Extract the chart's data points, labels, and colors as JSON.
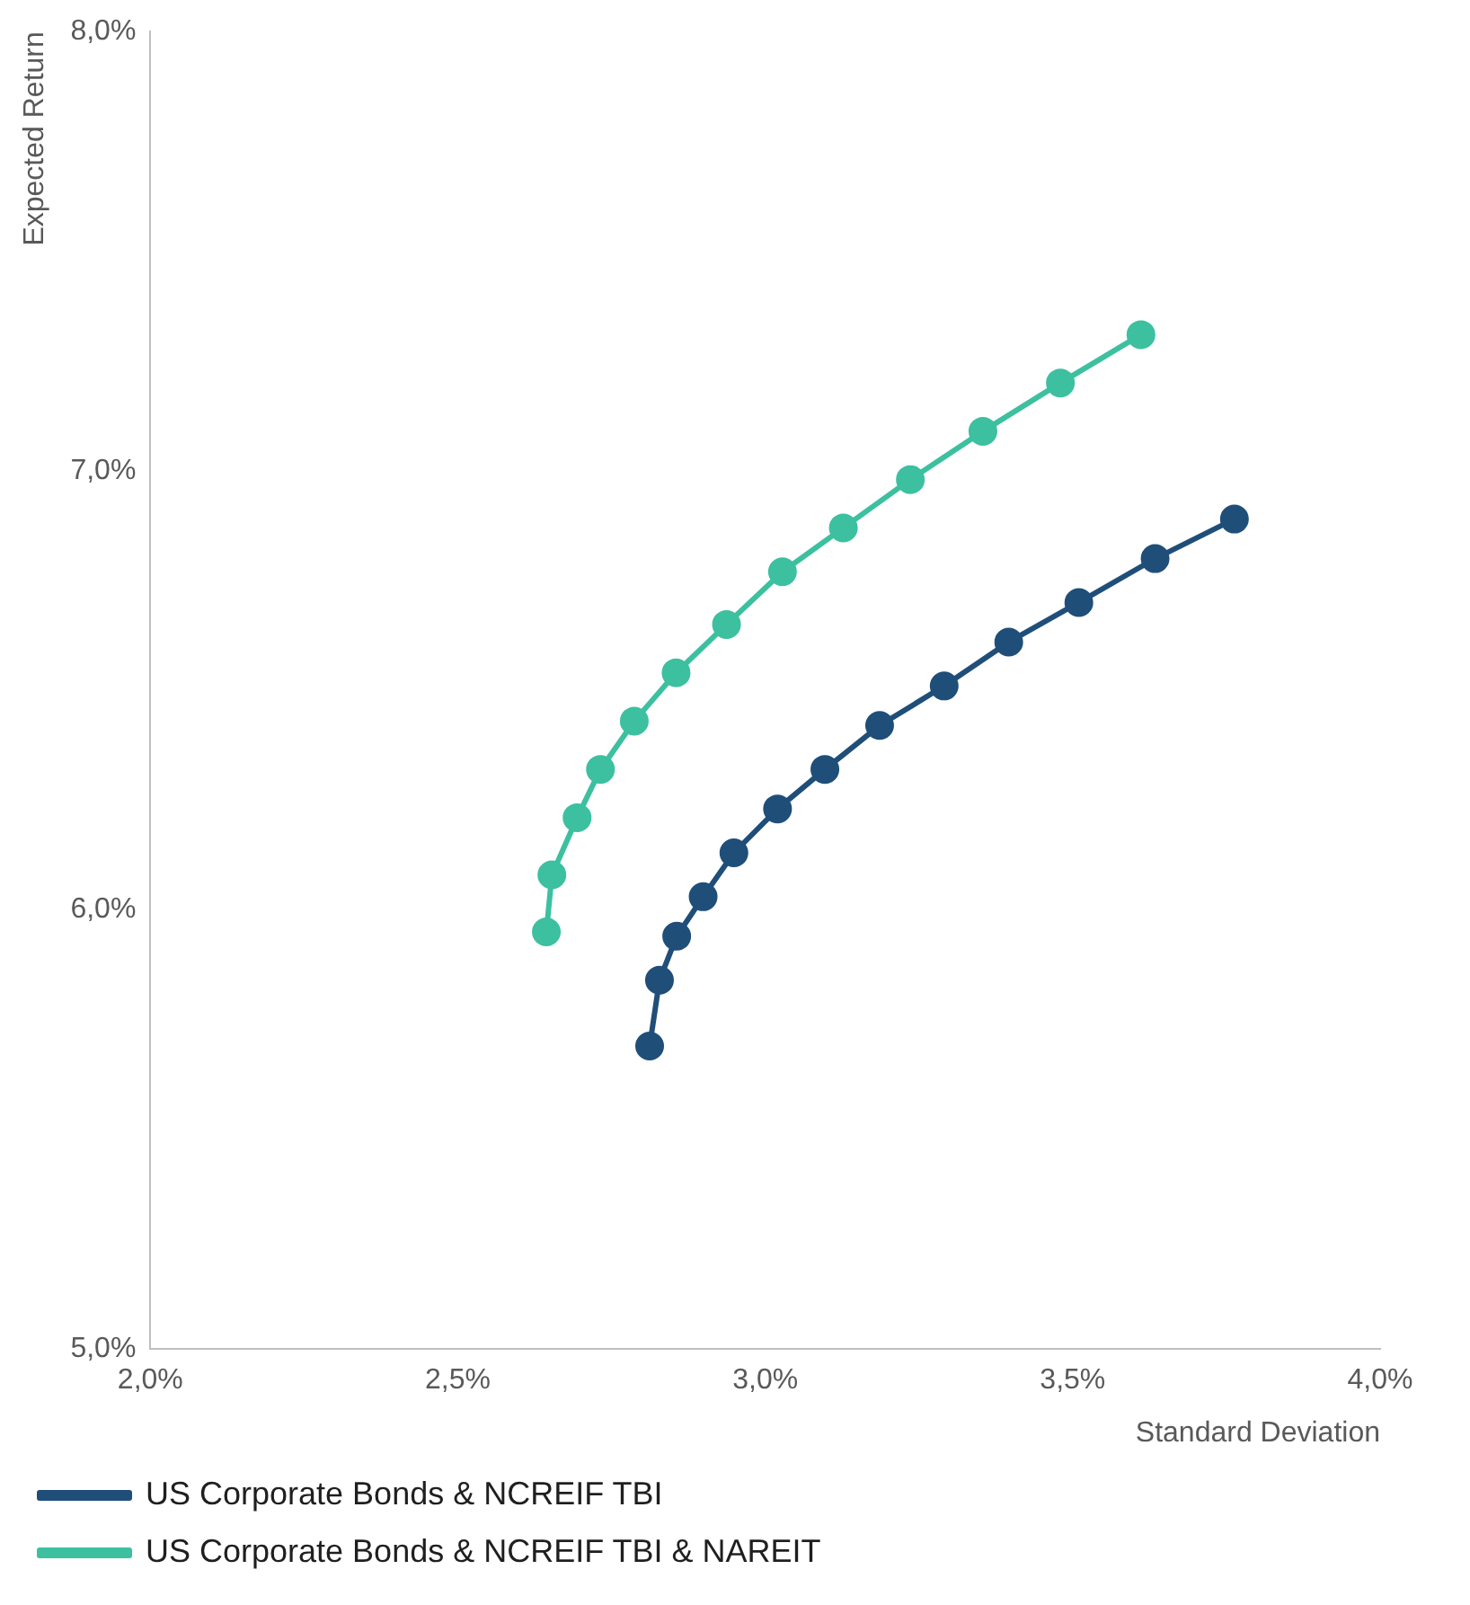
{
  "chart_data": {
    "type": "line",
    "xlabel": "Standard Deviation",
    "ylabel": "Expected Return",
    "xlim": [
      2.0,
      4.0
    ],
    "ylim": [
      5.0,
      8.0
    ],
    "xticks": [
      {
        "value": 2.0,
        "label": "2,0%"
      },
      {
        "value": 2.5,
        "label": "2,5%"
      },
      {
        "value": 3.0,
        "label": "3,0%"
      },
      {
        "value": 3.5,
        "label": "3,5%"
      },
      {
        "value": 4.0,
        "label": "4,0%"
      }
    ],
    "yticks": [
      {
        "value": 5.0,
        "label": "5,0%"
      },
      {
        "value": 6.0,
        "label": "6,0%"
      },
      {
        "value": 7.0,
        "label": "7,0%"
      },
      {
        "value": 8.0,
        "label": "8,0%"
      }
    ],
    "grid": false,
    "legend": "bottom",
    "marker": "circle",
    "line_style": "solid",
    "series": [
      {
        "name": "US Corporate Bonds & NCREIF TBI",
        "color": "#1f4e79",
        "x": [
          2.812,
          2.828,
          2.856,
          2.899,
          2.949,
          3.02,
          3.097,
          3.186,
          3.291,
          3.396,
          3.51,
          3.634,
          3.763
        ],
        "values": [
          5.69,
          5.84,
          5.94,
          6.03,
          6.13,
          6.23,
          6.32,
          6.42,
          6.51,
          6.61,
          6.7,
          6.8,
          6.89
        ]
      },
      {
        "name": "US Corporate Bonds & NCREIF TBI & NAREIT",
        "color": "#3cc0a0",
        "x": [
          2.644,
          2.653,
          2.694,
          2.732,
          2.787,
          2.855,
          2.937,
          3.028,
          3.127,
          3.236,
          3.354,
          3.48,
          3.611
        ],
        "values": [
          5.95,
          6.08,
          6.21,
          6.32,
          6.43,
          6.54,
          6.65,
          6.77,
          6.87,
          6.98,
          7.09,
          7.2,
          7.31
        ]
      }
    ]
  }
}
